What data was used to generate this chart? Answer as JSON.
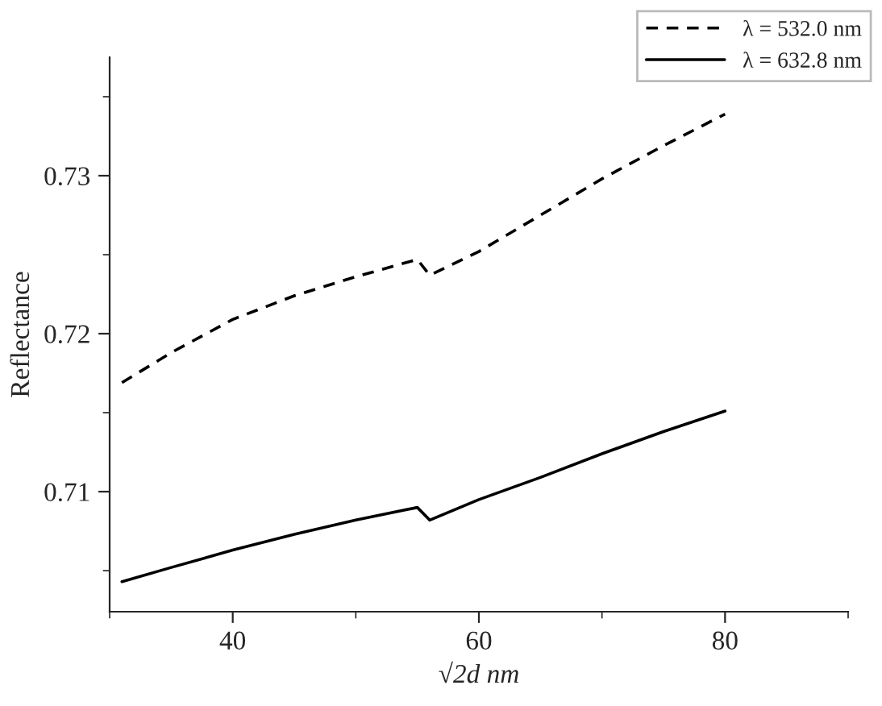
{
  "chart_data": {
    "type": "line",
    "xlabel": "√2d nm",
    "ylabel": "Reflectance",
    "xlim": [
      30,
      90
    ],
    "xticks": [
      40,
      60,
      80
    ],
    "ylim": [
      0.7024,
      0.7375
    ],
    "yticks": [
      0.71,
      0.72,
      0.73
    ],
    "grid": false,
    "legend": "top right",
    "series": [
      {
        "name": "λ = 532.0 nm",
        "color": "#000000",
        "line_style": "dashed",
        "x": [
          31,
          35,
          40,
          45,
          50,
          55,
          56,
          60,
          65,
          70,
          75,
          80
        ],
        "values": [
          0.7169,
          0.7188,
          0.7209,
          0.7224,
          0.7236,
          0.7247,
          0.7237,
          0.7252,
          0.7275,
          0.7298,
          0.7319,
          0.7339
        ]
      },
      {
        "name": "λ = 632.8 nm",
        "color": "#000000",
        "line_style": "solid",
        "x": [
          31,
          35,
          40,
          45,
          50,
          55,
          56,
          60,
          65,
          70,
          75,
          80
        ],
        "values": [
          0.7043,
          0.7052,
          0.7063,
          0.7073,
          0.7082,
          0.709,
          0.7082,
          0.7095,
          0.7109,
          0.7124,
          0.7138,
          0.7151
        ]
      }
    ]
  }
}
